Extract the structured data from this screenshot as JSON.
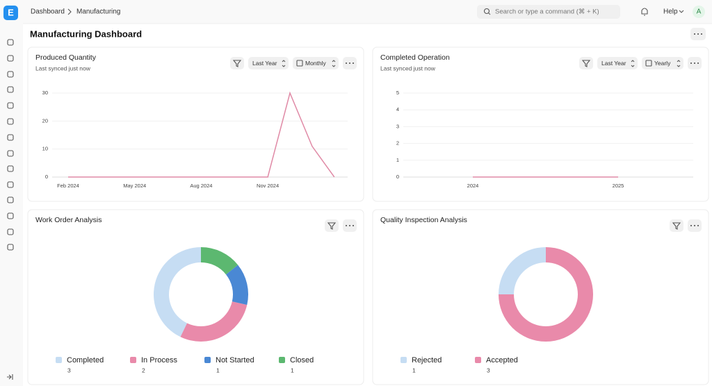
{
  "logo": "E",
  "header": {
    "breadcrumb": [
      "Dashboard",
      "Manufacturing"
    ],
    "search_placeholder": "Search or type a command (⌘ + K)",
    "help": "Help",
    "avatar": "A"
  },
  "page_title": "Manufacturing Dashboard",
  "chart_data": [
    {
      "type": "line",
      "title": "Produced Quantity",
      "subtitle": "Last synced just now",
      "filters": [
        "Last Year",
        "Monthly"
      ],
      "categories": [
        "Feb 2024",
        null,
        null,
        "May 2024",
        null,
        null,
        "Aug 2024",
        null,
        null,
        "Nov 2024",
        null,
        null,
        null
      ],
      "values": [
        0,
        0,
        0,
        0,
        0,
        0,
        0,
        0,
        0,
        0,
        30,
        11,
        0
      ],
      "color": "#e08aa6",
      "ylim": [
        0,
        30
      ],
      "yticks": [
        0,
        10,
        20,
        30
      ],
      "grid": true
    },
    {
      "type": "line",
      "title": "Completed Operation",
      "subtitle": "Last synced just now",
      "filters": [
        "Last Year",
        "Yearly"
      ],
      "categories": [
        "2024",
        "2025"
      ],
      "values": [
        0,
        0
      ],
      "color": "#e08aa6",
      "ylim": [
        0,
        5
      ],
      "yticks": [
        0,
        1,
        2,
        3,
        4,
        5
      ],
      "grid": true
    },
    {
      "type": "pie",
      "title": "Work Order Analysis",
      "categories": [
        "Completed",
        "In Process",
        "Not Started",
        "Closed"
      ],
      "values": [
        3,
        2,
        1,
        1
      ],
      "colors": [
        "#c6ddf3",
        "#e98aaa",
        "#4a88d4",
        "#5cb870"
      ]
    },
    {
      "type": "pie",
      "title": "Quality Inspection Analysis",
      "categories": [
        "Rejected",
        "Accepted"
      ],
      "values": [
        1,
        3
      ],
      "colors": [
        "#c6ddf3",
        "#e98aaa"
      ]
    }
  ]
}
